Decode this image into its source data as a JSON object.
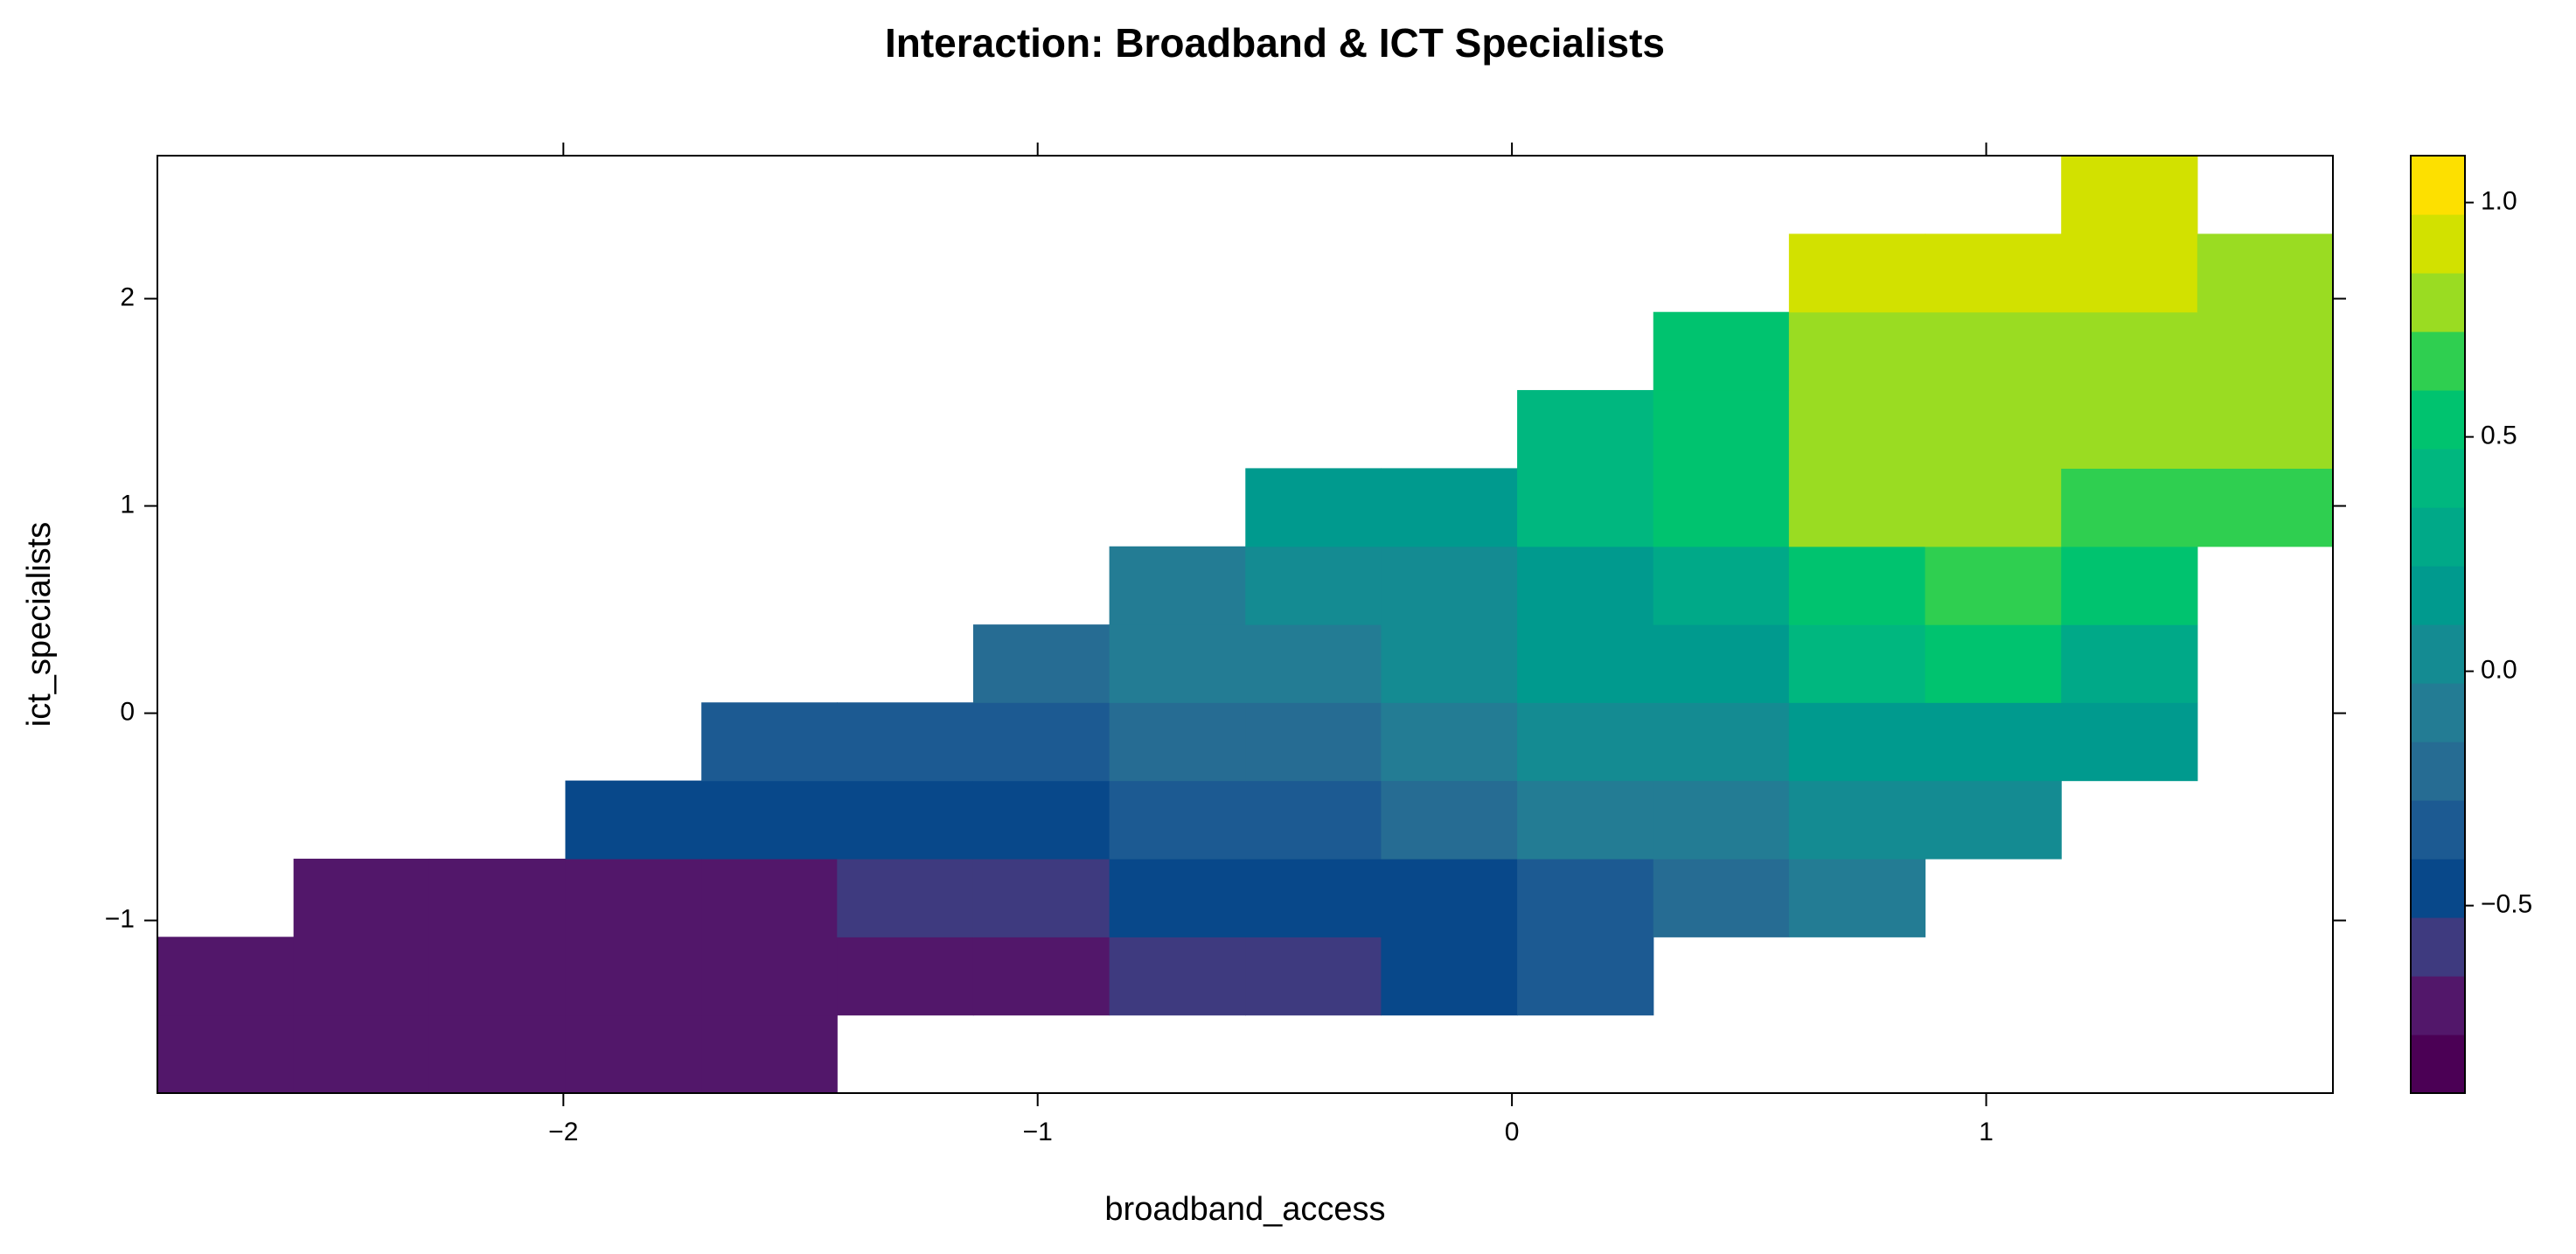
{
  "chart_data": {
    "type": "levelplot",
    "title": "Interaction: Broadband & ICT Specialists",
    "x_label": "broadband_access",
    "y_label": "ict_specialists",
    "xlim": [
      -2.856,
      1.731
    ],
    "ylim": [
      -1.833,
      2.69
    ],
    "xticks": [
      {
        "value": -2,
        "label": "−2"
      },
      {
        "value": -1,
        "label": "−1"
      },
      0,
      1
    ],
    "yticks": [
      {
        "value": -1,
        "label": "−1"
      },
      0,
      1,
      2
    ],
    "xbins": [
      -2.856,
      -2.569,
      -2.283,
      -1.996,
      -1.709,
      -1.423,
      -1.136,
      -0.849,
      -0.562,
      -0.276,
      0.011,
      0.298,
      0.584,
      0.871,
      1.158,
      1.445,
      1.731
    ],
    "ybins": [
      -1.833,
      -1.456,
      -1.079,
      -0.702,
      -0.325,
      0.052,
      0.428,
      0.805,
      1.182,
      1.559,
      1.936,
      2.313,
      2.69
    ],
    "z": [
      [
        -0.71,
        -0.71,
        -0.71,
        -0.71,
        -0.71,
        null,
        null,
        null,
        null,
        null,
        null,
        null,
        null,
        null,
        null,
        null
      ],
      [
        -0.71,
        -0.71,
        -0.71,
        -0.71,
        -0.71,
        -0.71,
        -0.71,
        -0.59,
        -0.59,
        -0.46,
        -0.34,
        null,
        null,
        null,
        null,
        null
      ],
      [
        null,
        -0.71,
        -0.71,
        -0.71,
        -0.71,
        -0.59,
        -0.59,
        -0.46,
        -0.46,
        -0.46,
        -0.34,
        -0.21,
        -0.09,
        null,
        null,
        null
      ],
      [
        null,
        null,
        null,
        -0.46,
        -0.46,
        -0.46,
        -0.46,
        -0.34,
        -0.34,
        -0.21,
        -0.09,
        -0.09,
        0.04,
        0.04,
        null,
        null
      ],
      [
        null,
        null,
        null,
        null,
        -0.34,
        -0.34,
        -0.34,
        -0.21,
        -0.21,
        -0.09,
        0.04,
        0.04,
        0.16,
        0.16,
        0.16,
        null
      ],
      [
        null,
        null,
        null,
        null,
        null,
        null,
        -0.2,
        -0.09,
        -0.09,
        0.04,
        0.16,
        0.16,
        0.41,
        0.54,
        0.29,
        null
      ],
      [
        null,
        null,
        null,
        null,
        null,
        null,
        null,
        -0.09,
        0.04,
        0.04,
        0.16,
        0.29,
        0.54,
        0.66,
        0.54,
        null
      ],
      [
        null,
        null,
        null,
        null,
        null,
        null,
        null,
        null,
        0.16,
        0.16,
        0.41,
        0.54,
        0.79,
        0.79,
        0.66,
        0.66
      ],
      [
        null,
        null,
        null,
        null,
        null,
        null,
        null,
        null,
        null,
        null,
        0.41,
        0.54,
        0.79,
        0.79,
        0.79,
        0.79
      ],
      [
        null,
        null,
        null,
        null,
        null,
        null,
        null,
        null,
        null,
        null,
        null,
        0.54,
        0.79,
        0.79,
        0.79,
        0.79
      ],
      [
        null,
        null,
        null,
        null,
        null,
        null,
        null,
        null,
        null,
        null,
        null,
        null,
        0.91,
        0.91,
        0.91,
        0.79
      ],
      [
        null,
        null,
        null,
        null,
        null,
        null,
        null,
        null,
        null,
        null,
        null,
        null,
        null,
        null,
        0.91,
        null
      ]
    ],
    "colorkey": {
      "breaks": [
        -0.9,
        -0.775,
        -0.65,
        -0.525,
        -0.4,
        -0.275,
        -0.15,
        -0.025,
        0.1,
        0.225,
        0.35,
        0.475,
        0.6,
        0.725,
        0.85,
        0.975,
        1.1
      ],
      "colors": [
        "#4b0055",
        "#52176a",
        "#3e3a7f",
        "#08488a",
        "#1c5a92",
        "#266c93",
        "#237c94",
        "#148b92",
        "#009a8e",
        "#00a988",
        "#00b77f",
        "#00c36f",
        "#2fcf50",
        "#9adc22",
        "#d2e100",
        "#fde000"
      ],
      "ticks": [
        {
          "value": -0.5,
          "label": "−0.5"
        },
        {
          "value": 0,
          "label": "0.0"
        },
        0.5,
        {
          "value": 1,
          "label": "1.0"
        }
      ]
    }
  }
}
